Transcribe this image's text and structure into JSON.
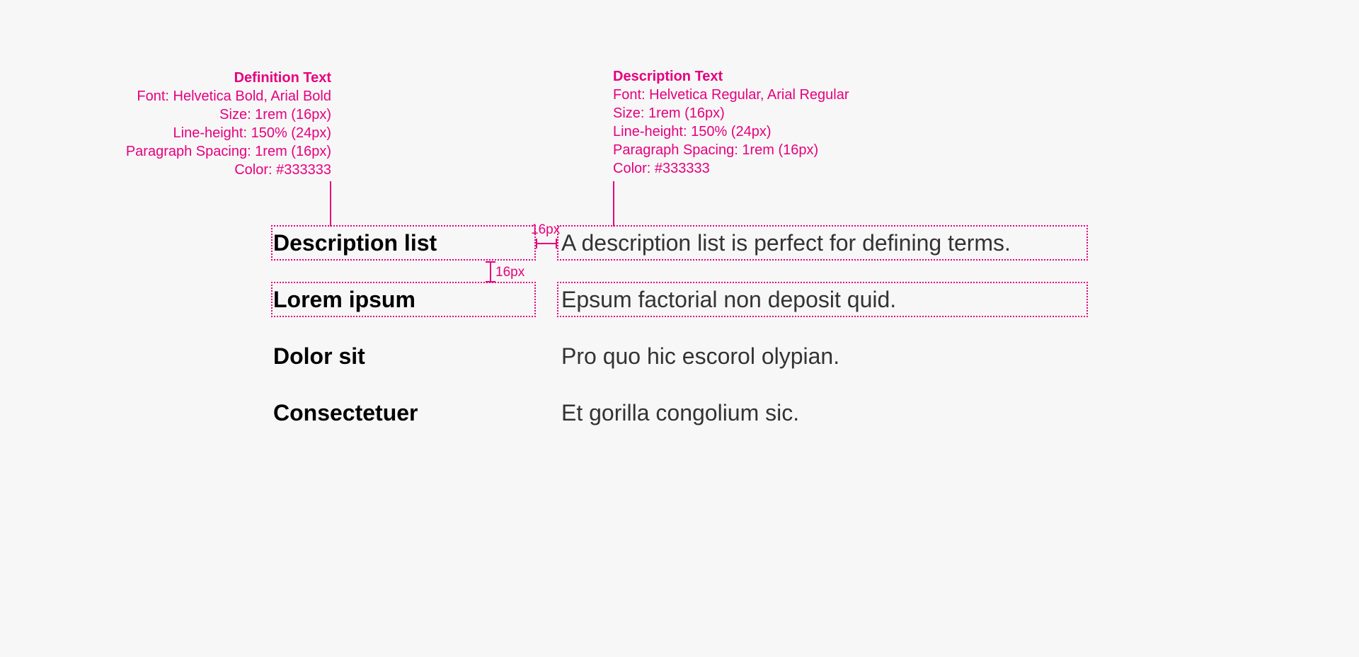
{
  "annotations": {
    "definition": {
      "title": "Definition Text",
      "lines": [
        "Font: Helvetica Bold, Arial Bold",
        "Size: 1rem (16px)",
        "Line-height: 150% (24px)",
        "Paragraph Spacing: 1rem (16px)",
        "Color: #333333"
      ]
    },
    "description": {
      "title": "Description Text",
      "lines": [
        "Font: Helvetica Regular, Arial Regular",
        "Size: 1rem (16px)",
        "Line-height: 150% (24px)",
        "Paragraph Spacing: 1rem (16px)",
        "Color: #333333"
      ]
    },
    "spacing_horizontal": "16px",
    "spacing_vertical": "16px"
  },
  "description_list": [
    {
      "term": "Description list",
      "description": "A description list is perfect for defining terms."
    },
    {
      "term": "Lorem ipsum",
      "description": "Epsum factorial non deposit quid."
    },
    {
      "term": "Dolor sit",
      "description": "Pro quo hic escorol olypian."
    },
    {
      "term": "Consectetuer",
      "description": "Et gorilla congolium sic."
    }
  ],
  "colors": {
    "annotation": "#e6007e",
    "term": "#000000",
    "description": "#333333",
    "background": "#f7f7f7"
  }
}
